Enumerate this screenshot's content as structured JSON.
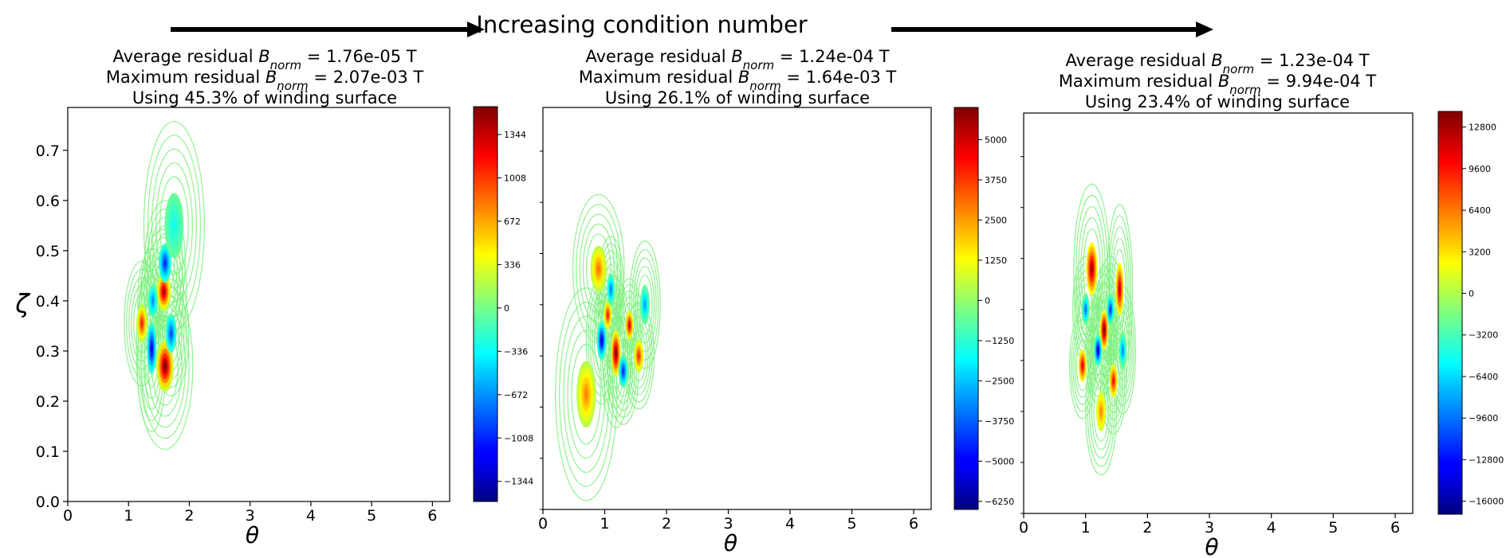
{
  "header": {
    "label": "Increasing condition number"
  },
  "colors": {
    "contour_green": "#7cf07c",
    "axis": "#000000",
    "arrow": "#000000"
  },
  "chart_data": [
    {
      "type": "contour",
      "title_lines": [
        {
          "prefix": "Average residual ",
          "symbol": "B",
          "subscript": "norm",
          "suffix": " = 1.76e-05 T"
        },
        {
          "prefix": "Maximum residual ",
          "symbol": "B",
          "subscript": "norm",
          "suffix": " = 2.07e-03 T"
        },
        {
          "prefix": "Using 45.3% of winding surface",
          "symbol": "",
          "subscript": "",
          "suffix": ""
        }
      ],
      "xlabel": "θ",
      "ylabel": "ζ",
      "xlim": [
        0,
        6.2832
      ],
      "ylim": [
        0,
        0.7854
      ],
      "xticks": [
        "0",
        "1",
        "2",
        "3",
        "4",
        "5",
        "6"
      ],
      "yticks": [
        "0.0",
        "0.1",
        "0.2",
        "0.3",
        "0.4",
        "0.5",
        "0.6",
        "0.7"
      ],
      "colorbar": {
        "min": -1500,
        "max": 1560,
        "ticks": [
          -1344,
          -1008,
          -672,
          -336,
          0,
          336,
          672,
          1008,
          1344
        ]
      },
      "blobs": [
        {
          "x": 1.6,
          "y": 0.27,
          "sx": 0.11,
          "sy": 0.04,
          "v": 1560
        },
        {
          "x": 1.58,
          "y": 0.418,
          "sx": 0.09,
          "sy": 0.03,
          "v": 1400
        },
        {
          "x": 1.22,
          "y": 0.355,
          "sx": 0.07,
          "sy": 0.03,
          "v": 1100
        },
        {
          "x": 1.38,
          "y": 0.305,
          "sx": 0.06,
          "sy": 0.04,
          "v": -1200
        },
        {
          "x": 1.7,
          "y": 0.335,
          "sx": 0.07,
          "sy": 0.03,
          "v": -900
        },
        {
          "x": 1.6,
          "y": 0.475,
          "sx": 0.08,
          "sy": 0.03,
          "v": -1000
        },
        {
          "x": 1.4,
          "y": 0.4,
          "sx": 0.06,
          "sy": 0.025,
          "v": -700
        },
        {
          "x": 1.75,
          "y": 0.55,
          "sx": 0.12,
          "sy": 0.05,
          "v": -300
        }
      ]
    },
    {
      "type": "contour",
      "title_lines": [
        {
          "prefix": "Average residual ",
          "symbol": "B",
          "subscript": "norm",
          "suffix": " = 1.24e-04 T"
        },
        {
          "prefix": "Maximum residual ",
          "symbol": "B",
          "subscript": "norm",
          "suffix": " = 1.64e-03 T"
        },
        {
          "prefix": "Using 26.1% of winding surface",
          "symbol": "",
          "subscript": "",
          "suffix": ""
        }
      ],
      "xlabel": "θ",
      "ylabel": "",
      "xlim": [
        0,
        6.2832
      ],
      "ylim": [
        0,
        0.7854
      ],
      "xticks": [
        "0",
        "1",
        "2",
        "3",
        "4",
        "5",
        "6"
      ],
      "yticks": [],
      "colorbar": {
        "min": -6500,
        "max": 6000,
        "ticks": [
          -6250,
          -5000,
          -3750,
          -2500,
          -1250,
          0,
          1250,
          2500,
          3750,
          5000
        ]
      },
      "blobs": [
        {
          "x": 1.18,
          "y": 0.305,
          "sx": 0.06,
          "sy": 0.035,
          "v": 6000
        },
        {
          "x": 1.4,
          "y": 0.36,
          "sx": 0.05,
          "sy": 0.022,
          "v": 5000
        },
        {
          "x": 0.95,
          "y": 0.33,
          "sx": 0.06,
          "sy": 0.03,
          "v": -5500
        },
        {
          "x": 1.3,
          "y": 0.27,
          "sx": 0.06,
          "sy": 0.025,
          "v": -4500
        },
        {
          "x": 1.05,
          "y": 0.38,
          "sx": 0.05,
          "sy": 0.022,
          "v": 4200
        },
        {
          "x": 1.55,
          "y": 0.3,
          "sx": 0.06,
          "sy": 0.025,
          "v": 4000
        },
        {
          "x": 0.9,
          "y": 0.47,
          "sx": 0.1,
          "sy": 0.035,
          "v": 3000
        },
        {
          "x": 0.7,
          "y": 0.225,
          "sx": 0.12,
          "sy": 0.05,
          "v": 2800
        },
        {
          "x": 1.65,
          "y": 0.4,
          "sx": 0.06,
          "sy": 0.03,
          "v": -3000
        },
        {
          "x": 1.1,
          "y": 0.43,
          "sx": 0.05,
          "sy": 0.025,
          "v": -3500
        }
      ]
    },
    {
      "type": "contour",
      "title_lines": [
        {
          "prefix": "Average residual ",
          "symbol": "B",
          "subscript": "norm",
          "suffix": " = 1.23e-04 T"
        },
        {
          "prefix": "Maximum residual ",
          "symbol": "B",
          "subscript": "norm",
          "suffix": " = 9.94e-04 T"
        },
        {
          "prefix": "Using 23.4% of winding surface",
          "symbol": "",
          "subscript": "",
          "suffix": ""
        }
      ],
      "xlabel": "θ",
      "ylabel": "",
      "xlim": [
        0,
        6.2832
      ],
      "ylim": [
        0,
        0.7854
      ],
      "xticks": [
        "0",
        "1",
        "2",
        "3",
        "4",
        "5",
        "6"
      ],
      "yticks": [],
      "colorbar": {
        "min": -17000,
        "max": 14000,
        "ticks": [
          -16000,
          -12800,
          -9600,
          -6400,
          -3200,
          0,
          3200,
          6400,
          9600,
          12800
        ]
      },
      "blobs": [
        {
          "x": 1.3,
          "y": 0.36,
          "sx": 0.05,
          "sy": 0.03,
          "v": 14000
        },
        {
          "x": 1.1,
          "y": 0.48,
          "sx": 0.07,
          "sy": 0.04,
          "v": 13000
        },
        {
          "x": 1.55,
          "y": 0.44,
          "sx": 0.05,
          "sy": 0.04,
          "v": 12000
        },
        {
          "x": 0.95,
          "y": 0.29,
          "sx": 0.05,
          "sy": 0.025,
          "v": 11000
        },
        {
          "x": 1.45,
          "y": 0.26,
          "sx": 0.05,
          "sy": 0.025,
          "v": 10000
        },
        {
          "x": 1.2,
          "y": 0.32,
          "sx": 0.05,
          "sy": 0.025,
          "v": -15000
        },
        {
          "x": 1.4,
          "y": 0.4,
          "sx": 0.05,
          "sy": 0.025,
          "v": -12000
        },
        {
          "x": 1.0,
          "y": 0.4,
          "sx": 0.05,
          "sy": 0.025,
          "v": -10000
        },
        {
          "x": 1.6,
          "y": 0.32,
          "sx": 0.05,
          "sy": 0.03,
          "v": -9000
        },
        {
          "x": 1.25,
          "y": 0.2,
          "sx": 0.06,
          "sy": 0.03,
          "v": 6000
        }
      ]
    }
  ]
}
